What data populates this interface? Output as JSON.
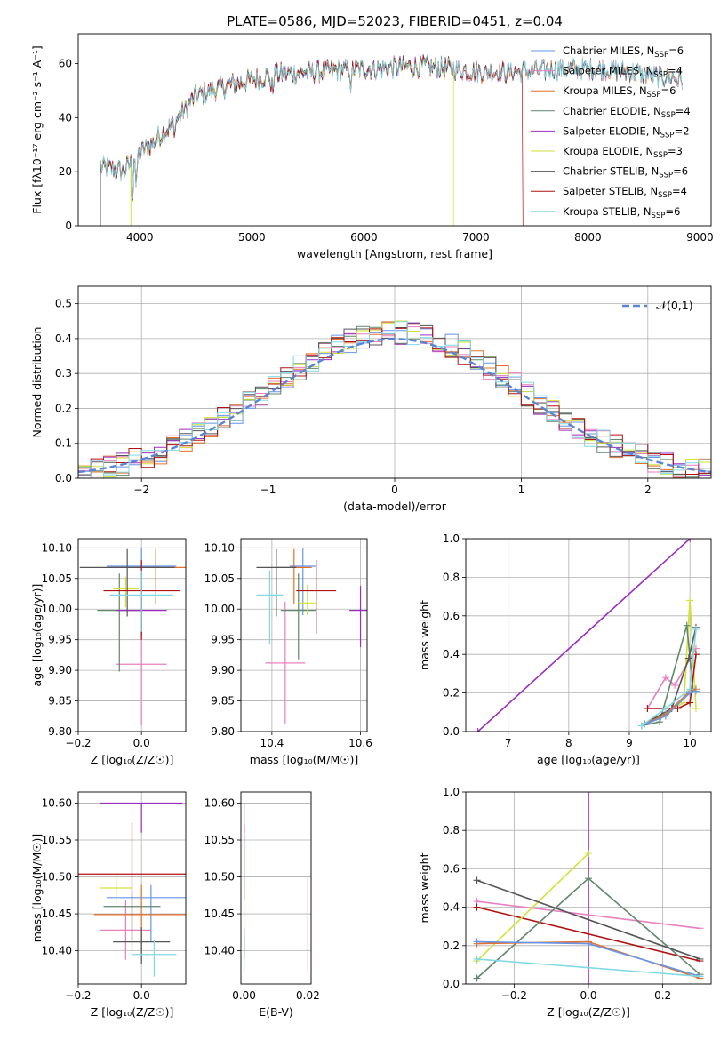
{
  "figure": {
    "title": "PLATE=0586, MJD=52023, FIBERID=0451, z=0.04"
  },
  "colors": {
    "cm": "#6495ed",
    "sm": "#e87fbf",
    "km": "#e3712b",
    "ce": "#5f876a",
    "se": "#9a2ebf",
    "ke": "#d2e23a",
    "cs": "#555555",
    "ss": "#b01010",
    "ks": "#7fd9e6"
  },
  "chart_data": [
    {
      "id": "spectrum",
      "type": "line",
      "title": "PLATE=0586, MJD=52023, FIBERID=0451, z=0.04",
      "xlabel": "wavelength [Angstrom, rest frame]",
      "ylabel": "Flux [fλ10⁻¹⁷ erg cm⁻² s⁻¹ A⁻¹]",
      "xlim": [
        3450,
        9100
      ],
      "ylim": [
        0,
        71
      ],
      "xticks": [
        "4000",
        "5000",
        "6000",
        "7000",
        "8000",
        "9000"
      ],
      "yticks": [
        "0",
        "20",
        "40",
        "60"
      ],
      "legend_position": "top-right",
      "legend": [
        {
          "key": "cm",
          "label": "Chabrier MILES, N",
          "sub": "SSP",
          "tail": "=6"
        },
        {
          "key": "sm",
          "label": "Salpeter MILES, N",
          "sub": "SSP",
          "tail": "=4"
        },
        {
          "key": "km",
          "label": "Kroupa MILES, N",
          "sub": "SSP",
          "tail": "=6"
        },
        {
          "key": "ce",
          "label": "Chabrier ELODIE, N",
          "sub": "SSP",
          "tail": "=4"
        },
        {
          "key": "se",
          "label": "Salpeter ELODIE, N",
          "sub": "SSP",
          "tail": "=2"
        },
        {
          "key": "ke",
          "label": "Kroupa ELODIE, N",
          "sub": "SSP",
          "tail": "=3"
        },
        {
          "key": "cs",
          "label": "Chabrier STELIB, N",
          "sub": "SSP",
          "tail": "=6"
        },
        {
          "key": "ss",
          "label": "Salpeter STELIB, N",
          "sub": "SSP",
          "tail": "=4"
        },
        {
          "key": "ks",
          "label": "Kroupa STELIB, N",
          "sub": "SSP",
          "tail": "=6"
        }
      ],
      "continuum_x": [
        3650,
        3850,
        3950,
        4100,
        4300,
        4500,
        4800,
        5200,
        5600,
        6000,
        6500,
        6800,
        7000,
        7400,
        7800,
        8200,
        8500,
        8850
      ],
      "continuum_y": [
        22,
        20,
        25,
        30,
        38,
        48,
        52,
        56,
        57,
        58,
        59,
        58,
        57,
        57,
        58,
        58,
        56,
        54
      ],
      "series_ranges": {
        "cm": [
          3650,
          8850
        ],
        "sm": [
          3650,
          8850
        ],
        "km": [
          3650,
          8850
        ],
        "ce": [
          3650,
          6800
        ],
        "se": [
          3650,
          6800
        ],
        "ke": [
          3650,
          6800
        ],
        "cs": [
          3650,
          8850
        ],
        "ss": [
          3650,
          7420
        ],
        "ks": [
          3650,
          8850
        ]
      }
    },
    {
      "id": "residual-hist",
      "type": "bar",
      "xlabel": "(data-model)/error",
      "ylabel": "Normed distribution",
      "xlim": [
        -2.5,
        2.5
      ],
      "ylim": [
        0,
        0.55
      ],
      "xticks": [
        "−2",
        "−1",
        "0",
        "1",
        "2"
      ],
      "yticks": [
        "0.0",
        "0.1",
        "0.2",
        "0.3",
        "0.4",
        "0.5"
      ],
      "bin_width": 0.1,
      "grid": true,
      "legend_position": "top-right",
      "legend_label": "𝒩(0,1)",
      "reference_curve": "normal(0,1)",
      "reference_color": "#5b84d4"
    },
    {
      "id": "age-vs-Z",
      "type": "scatter",
      "xlabel": "Z [log₁₀(Z/Z☉)]",
      "ylabel": "age  [log₁₀(age/yr)]",
      "xlim": [
        -0.2,
        0.14
      ],
      "ylim": [
        9.8,
        10.115
      ],
      "xticks": [
        "−0.2",
        "0.0"
      ],
      "yticks": [
        "9.80",
        "9.85",
        "9.90",
        "9.95",
        "10.00",
        "10.05",
        "10.10"
      ],
      "grid": true,
      "points": [
        {
          "key": "cm",
          "x": 0.0,
          "y": 10.07,
          "xerr": 0.11,
          "yerr_up": 0.03,
          "yerr_dn": 0.08
        },
        {
          "key": "sm",
          "x": 0.0,
          "y": 9.91,
          "xerr": 0.08,
          "yerr_up": 0.1,
          "yerr_dn": 0.1
        },
        {
          "key": "km",
          "x": 0.045,
          "y": 10.068,
          "xerr": 0.15,
          "yerr_up": 0.03,
          "yerr_dn": 0.06
        },
        {
          "key": "ce",
          "x": -0.07,
          "y": 9.998,
          "xerr": 0.07,
          "yerr_up": 0.06,
          "yerr_dn": 0.1
        },
        {
          "key": "se",
          "x": 0.0,
          "y": 9.998,
          "xerr": 0.08,
          "yerr_up": 0.03,
          "yerr_dn": 0.04
        },
        {
          "key": "ke",
          "x": -0.05,
          "y": 10.033,
          "xerr": 0.04,
          "yerr_up": 0.02,
          "yerr_dn": 0.03
        },
        {
          "key": "cs",
          "x": -0.045,
          "y": 10.068,
          "xerr": 0.15,
          "yerr_up": 0.03,
          "yerr_dn": 0.08
        },
        {
          "key": "ss",
          "x": 0.0,
          "y": 10.03,
          "xerr": 0.12,
          "yerr_up": 0.05,
          "yerr_dn": 0.08
        },
        {
          "key": "ks",
          "x": 0.0,
          "y": 10.023,
          "xerr": 0.1,
          "yerr_up": 0.04,
          "yerr_dn": 0.06
        }
      ]
    },
    {
      "id": "age-vs-mass",
      "type": "scatter",
      "xlabel": "mass [log₁₀(M/M☉)]",
      "ylabel": "",
      "xlim": [
        10.33,
        10.615
      ],
      "ylim": [
        9.8,
        10.115
      ],
      "xticks": [
        "10.4",
        "10.6"
      ],
      "yticks": [
        "9.80",
        "9.85",
        "9.90",
        "9.95",
        "10.00",
        "10.05",
        "10.10"
      ],
      "grid": true,
      "points": [
        {
          "key": "cm",
          "x": 10.47,
          "y": 10.07,
          "xerr": 0.03,
          "yerr_up": 0.03,
          "yerr_dn": 0.08
        },
        {
          "key": "sm",
          "x": 10.43,
          "y": 9.912,
          "xerr": 0.045,
          "yerr_up": 0.1,
          "yerr_dn": 0.1
        },
        {
          "key": "km",
          "x": 10.45,
          "y": 10.068,
          "xerr": 0.04,
          "yerr_up": 0.03,
          "yerr_dn": 0.06
        },
        {
          "key": "ce",
          "x": 10.46,
          "y": 9.998,
          "xerr": 0.04,
          "yerr_up": 0.06,
          "yerr_dn": 0.08
        },
        {
          "key": "se",
          "x": 10.6,
          "y": 9.998,
          "xerr": 0.025,
          "yerr_up": 0.04,
          "yerr_dn": 0.06
        },
        {
          "key": "ke",
          "x": 10.48,
          "y": 10.01,
          "xerr": 0.02,
          "yerr_up": 0.03,
          "yerr_dn": 0.02
        },
        {
          "key": "cs",
          "x": 10.41,
          "y": 10.068,
          "xerr": 0.045,
          "yerr_up": 0.03,
          "yerr_dn": 0.08
        },
        {
          "key": "ss",
          "x": 10.5,
          "y": 10.03,
          "xerr": 0.045,
          "yerr_up": 0.05,
          "yerr_dn": 0.07
        },
        {
          "key": "ks",
          "x": 10.395,
          "y": 10.023,
          "xerr": 0.03,
          "yerr_up": 0.04,
          "yerr_dn": 0.08
        }
      ]
    },
    {
      "id": "weight-vs-age",
      "type": "line",
      "xlabel": "age  [log₁₀(age/yr)]",
      "ylabel": "mass weight",
      "xlim": [
        6.3,
        10.35
      ],
      "ylim": [
        0,
        1.0
      ],
      "xticks": [
        "7",
        "8",
        "9",
        "10"
      ],
      "yticks": [
        "0.0",
        "0.2",
        "0.4",
        "0.6",
        "0.8",
        "1.0"
      ],
      "grid": true,
      "series": [
        {
          "key": "se",
          "x": [
            6.5,
            10.0
          ],
          "y": [
            0.0,
            1.0
          ]
        },
        {
          "key": "sm",
          "x": [
            9.3,
            9.6,
            9.75,
            10.1
          ],
          "y": [
            0.12,
            0.28,
            0.24,
            0.43
          ]
        },
        {
          "key": "ke",
          "x": [
            9.2,
            9.9,
            10.0,
            10.1
          ],
          "y": [
            0.03,
            0.15,
            0.68,
            0.12
          ]
        },
        {
          "key": "ce",
          "x": [
            9.2,
            9.5,
            9.95,
            10.05
          ],
          "y": [
            0.03,
            0.05,
            0.55,
            0.22
          ]
        },
        {
          "key": "cs",
          "x": [
            9.25,
            9.7,
            9.98,
            10.1
          ],
          "y": [
            0.04,
            0.12,
            0.38,
            0.54
          ]
        },
        {
          "key": "ss",
          "x": [
            9.3,
            9.8,
            10.0,
            10.1
          ],
          "y": [
            0.12,
            0.12,
            0.15,
            0.4
          ]
        },
        {
          "key": "km",
          "x": [
            9.2,
            9.6,
            10.0,
            10.1
          ],
          "y": [
            0.03,
            0.09,
            0.21,
            0.22
          ]
        },
        {
          "key": "cm",
          "x": [
            9.2,
            9.6,
            10.0,
            10.1
          ],
          "y": [
            0.03,
            0.08,
            0.2,
            0.21
          ]
        },
        {
          "key": "ks",
          "x": [
            9.2,
            9.6,
            10.0,
            10.1
          ],
          "y": [
            0.03,
            0.12,
            0.22,
            0.53
          ]
        }
      ]
    },
    {
      "id": "mass-vs-Z",
      "type": "scatter",
      "xlabel": "Z [log₁₀(Z/Z☉)]",
      "ylabel": "mass [log₁₀(M/M☉)]",
      "xlim": [
        -0.2,
        0.14
      ],
      "ylim": [
        10.355,
        10.615
      ],
      "xticks": [
        "−0.2",
        "0.0"
      ],
      "yticks": [
        "10.40",
        "10.45",
        "10.50",
        "10.55",
        "10.60"
      ],
      "grid": true,
      "points": [
        {
          "key": "cm",
          "x": 0.03,
          "y": 10.472,
          "xerr": 0.14,
          "yerr_up": 0.017,
          "yerr_dn": 0.06
        },
        {
          "key": "sm",
          "x": -0.05,
          "y": 10.428,
          "xerr": 0.08,
          "yerr_up": 0.04,
          "yerr_dn": 0.04
        },
        {
          "key": "km",
          "x": 0.0,
          "y": 10.449,
          "xerr": 0.15,
          "yerr_up": 0.04,
          "yerr_dn": 0.05
        },
        {
          "key": "ce",
          "x": -0.03,
          "y": 10.46,
          "xerr": 0.09,
          "yerr_up": 0.02,
          "yerr_dn": 0.06
        },
        {
          "key": "se",
          "x": 0.0,
          "y": 10.6,
          "xerr": 0.13,
          "yerr_up": 0.0,
          "yerr_dn": 0.04
        },
        {
          "key": "ke",
          "x": -0.08,
          "y": 10.485,
          "xerr": 0.05,
          "yerr_up": 0.02,
          "yerr_dn": 0.02
        },
        {
          "key": "cs",
          "x": 0.0,
          "y": 10.412,
          "xerr": 0.09,
          "yerr_up": 0.02,
          "yerr_dn": 0.03
        },
        {
          "key": "ss",
          "x": -0.03,
          "y": 10.504,
          "xerr": 0.17,
          "yerr_up": 0.07,
          "yerr_dn": 0.09
        },
        {
          "key": "ks",
          "x": 0.04,
          "y": 10.395,
          "xerr": 0.07,
          "yerr_up": 0.02,
          "yerr_dn": 0.03
        }
      ]
    },
    {
      "id": "mass-vs-ebv",
      "type": "scatter",
      "xlabel": "E(B-V)",
      "ylabel": "",
      "xlim": [
        -0.001,
        0.021
      ],
      "ylim": [
        10.355,
        10.615
      ],
      "xticks": [
        "0.00",
        "0.02"
      ],
      "yticks": [
        "10.40",
        "10.45",
        "10.50",
        "10.55",
        "10.60"
      ],
      "grid": true,
      "points": [
        {
          "key": "sm",
          "x": 0.02,
          "y": 10.43,
          "yerr_up": 0.07,
          "yerr_dn": 0.06
        },
        {
          "key": "ss",
          "x": 0.0,
          "y": 10.52,
          "yerr_up": 0.05,
          "yerr_dn": 0.05
        },
        {
          "key": "se",
          "x": 0.0,
          "y": 10.58,
          "yerr_up": 0.02,
          "yerr_dn": 0.02
        },
        {
          "key": "ke",
          "x": 0.0,
          "y": 10.46,
          "yerr_up": 0.02,
          "yerr_dn": 0.03
        },
        {
          "key": "ks",
          "x": 0.0,
          "y": 10.39,
          "yerr_up": 0.03,
          "yerr_dn": 0.02
        },
        {
          "key": "cs",
          "x": 0.0,
          "y": 10.41,
          "yerr_up": 0.02,
          "yerr_dn": 0.02
        }
      ]
    },
    {
      "id": "weight-vs-Z",
      "type": "line",
      "xlabel": "Z [log₁₀(Z/Z☉)]",
      "ylabel": "mass weight",
      "xlim": [
        -0.33,
        0.33
      ],
      "ylim": [
        0,
        1.0
      ],
      "xticks": [
        "−0.2",
        "0.0",
        "0.2"
      ],
      "yticks": [
        "0.0",
        "0.2",
        "0.4",
        "0.6",
        "0.8",
        "1.0"
      ],
      "grid": true,
      "series": [
        {
          "key": "se",
          "x": [
            0.0,
            0.0
          ],
          "y": [
            0.0,
            1.0
          ]
        },
        {
          "key": "sm",
          "x": [
            -0.3,
            0.3
          ],
          "y": [
            0.43,
            0.29
          ]
        },
        {
          "key": "ss",
          "x": [
            -0.3,
            0.3
          ],
          "y": [
            0.4,
            0.12
          ]
        },
        {
          "key": "ce",
          "x": [
            -0.3,
            0.0,
            0.3
          ],
          "y": [
            0.03,
            0.55,
            0.05
          ]
        },
        {
          "key": "ke",
          "x": [
            -0.3,
            0.0
          ],
          "y": [
            0.12,
            0.68
          ]
        },
        {
          "key": "km",
          "x": [
            -0.3,
            0.0,
            0.3
          ],
          "y": [
            0.21,
            0.22,
            0.03
          ]
        },
        {
          "key": "cm",
          "x": [
            -0.3,
            0.0,
            0.3
          ],
          "y": [
            0.22,
            0.21,
            0.04
          ]
        },
        {
          "key": "ks",
          "x": [
            -0.3,
            0.3
          ],
          "y": [
            0.13,
            0.04
          ]
        },
        {
          "key": "cs",
          "x": [
            -0.3,
            0.3
          ],
          "y": [
            0.54,
            0.13
          ]
        }
      ]
    }
  ]
}
